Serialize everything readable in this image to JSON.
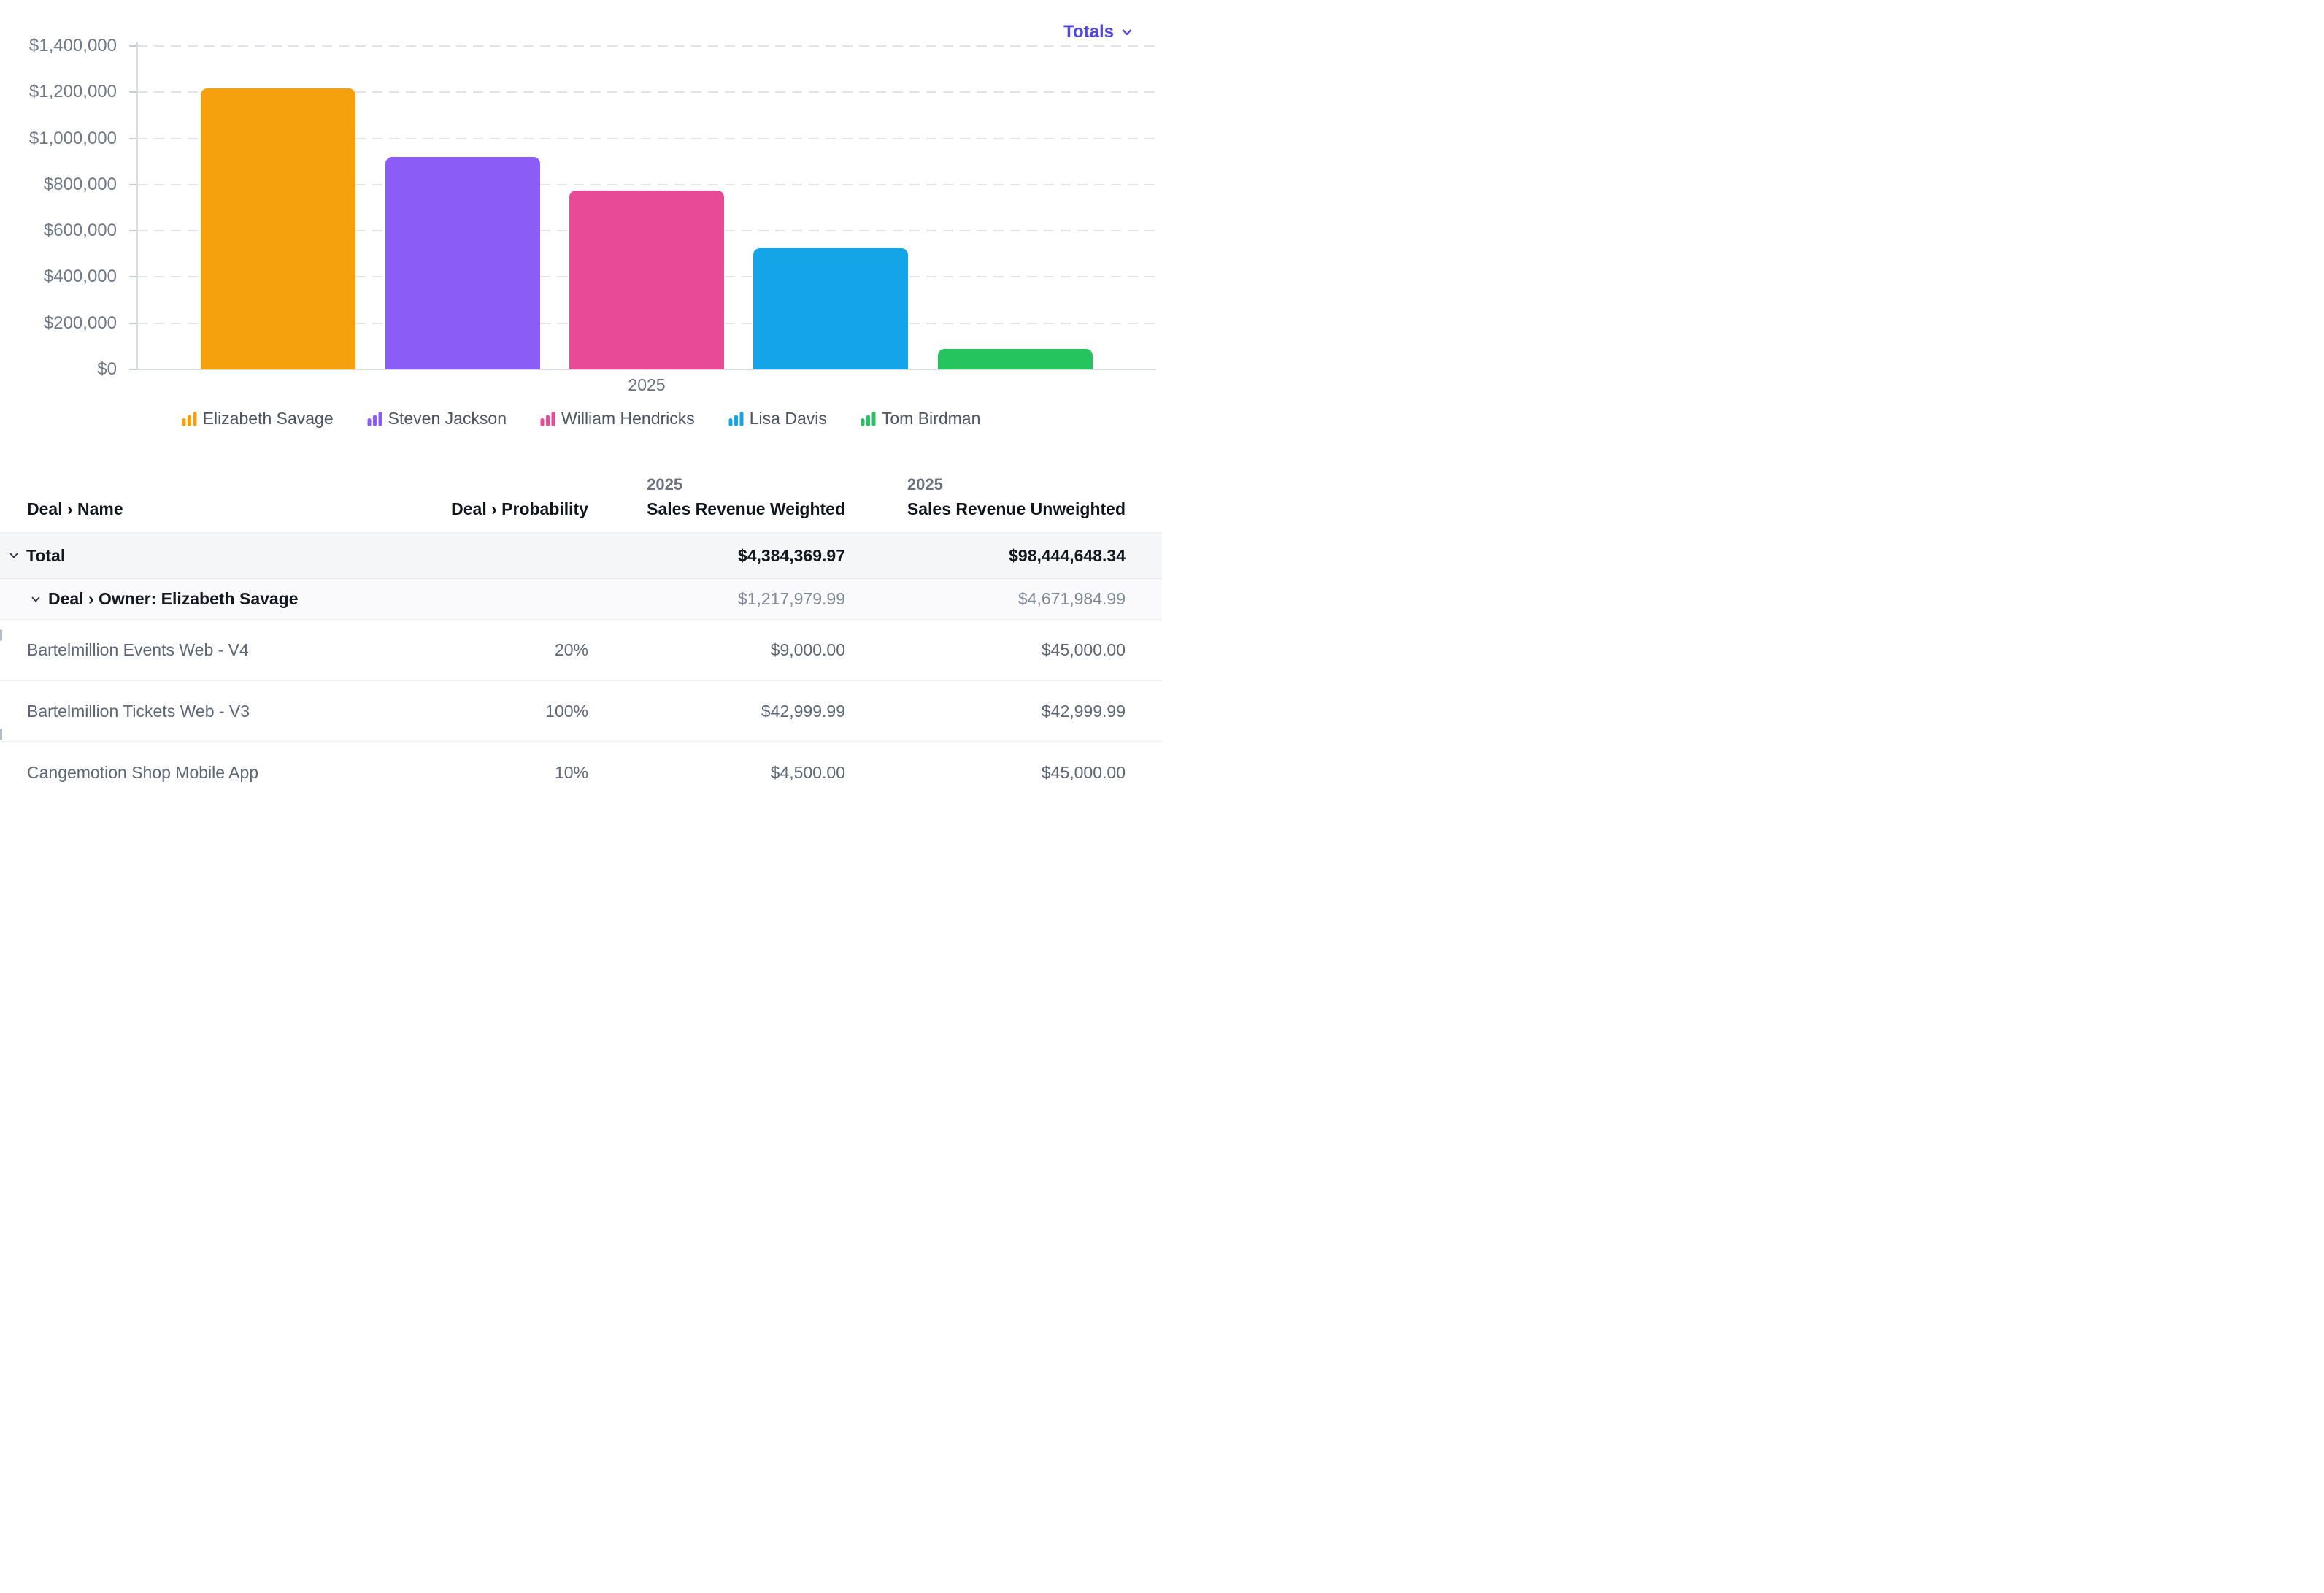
{
  "controls": {
    "totals_label": "Totals"
  },
  "colors": {
    "accent": "#4F46E5"
  },
  "chart_data": {
    "type": "bar",
    "title": "",
    "categories": [
      "2025"
    ],
    "series": [
      {
        "name": "Elizabeth Savage",
        "color": "#F5A00D",
        "values": [
          1217979.99
        ]
      },
      {
        "name": "Steven Jackson",
        "color": "#8B5CF6",
        "values": [
          920000
        ]
      },
      {
        "name": "William Hendricks",
        "color": "#E94A98",
        "values": [
          775000
        ]
      },
      {
        "name": "Lisa Davis",
        "color": "#14A5E8",
        "values": [
          525000
        ]
      },
      {
        "name": "Tom Birdman",
        "color": "#25C45F",
        "values": [
          90000
        ]
      }
    ],
    "xlabel": "",
    "ylabel": "",
    "ylim": [
      0,
      1400000
    ],
    "y_tick_step": 200000,
    "y_tick_labels": [
      "$0",
      "$200,000",
      "$400,000",
      "$600,000",
      "$800,000",
      "$1,000,000",
      "$1,200,000",
      "$1,400,000"
    ],
    "grid": "horizontal-dashed",
    "legend_position": "bottom",
    "value_format": "USD"
  },
  "table": {
    "columns": [
      {
        "label": "Deal › Name",
        "align": "left"
      },
      {
        "label": "Deal › Probability",
        "align": "right"
      },
      {
        "year": "2025",
        "label": "Sales Revenue Weighted",
        "align": "right"
      },
      {
        "year": "2025",
        "label": "Sales Revenue Unweighted",
        "align": "right"
      }
    ],
    "rows": [
      {
        "type": "total",
        "name": "Total",
        "probability": "",
        "weighted": "$4,384,369.97",
        "unweighted": "$98,444,648.34",
        "expanded": true
      },
      {
        "type": "group",
        "name": "Deal › Owner: Elizabeth Savage",
        "probability": "",
        "weighted": "$1,217,979.99",
        "unweighted": "$4,671,984.99",
        "expanded": true
      },
      {
        "type": "deal",
        "name": "Bartelmillion Events Web - V4",
        "probability": "20%",
        "weighted": "$9,000.00",
        "unweighted": "$45,000.00"
      },
      {
        "type": "deal",
        "name": "Bartelmillion Tickets Web - V3",
        "probability": "100%",
        "weighted": "$42,999.99",
        "unweighted": "$42,999.99"
      },
      {
        "type": "deal",
        "name": "Cangemotion Shop Mobile App",
        "probability": "10%",
        "weighted": "$4,500.00",
        "unweighted": "$45,000.00"
      }
    ]
  }
}
